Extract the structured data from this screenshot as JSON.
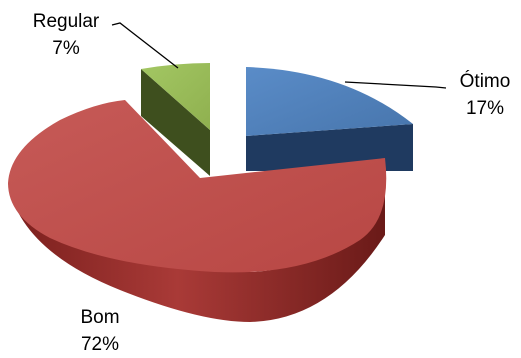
{
  "chart_data": {
    "type": "pie",
    "style": "3d-exploded",
    "title": "",
    "legend": "none",
    "slices": [
      {
        "label": "Ótimo",
        "percent_text": "17%",
        "value": 17,
        "color": "#4F81BD",
        "side_color": "#1F3A60"
      },
      {
        "label": "Bom",
        "percent_text": "72%",
        "value": 72,
        "color": "#C0504D",
        "side_color": "#7A1F1D"
      },
      {
        "label": "Regular",
        "percent_text": "7%",
        "value": 7,
        "color": "#9BBB59",
        "side_color": "#3E4F1E"
      }
    ]
  }
}
